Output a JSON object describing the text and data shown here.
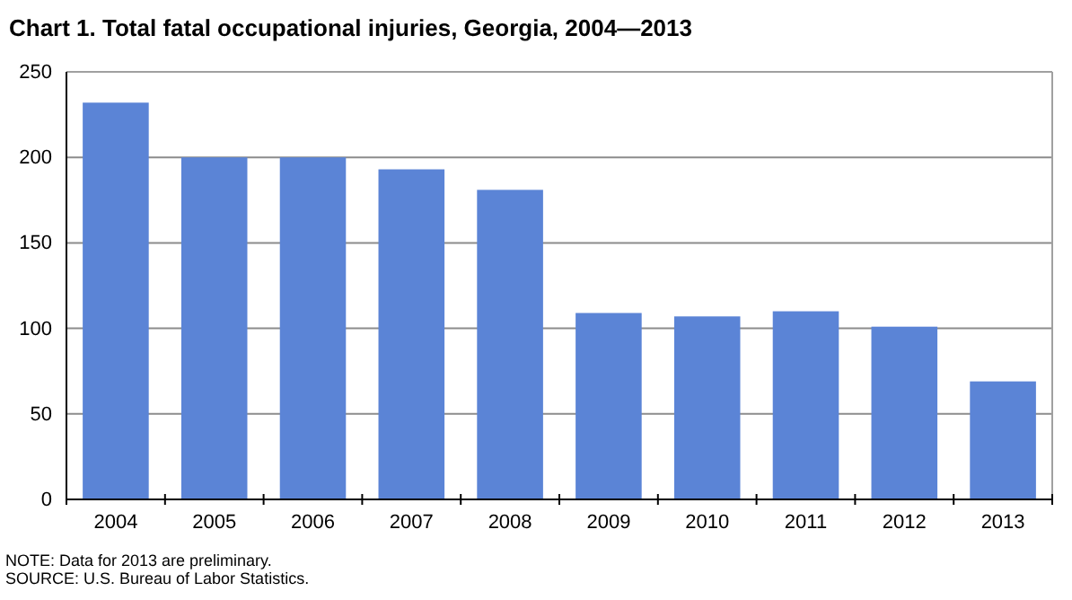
{
  "chart_data": {
    "type": "bar",
    "title": "Chart 1. Total fatal occupational injuries, Georgia, 2004—2013",
    "categories": [
      "2004",
      "2005",
      "2006",
      "2007",
      "2008",
      "2009",
      "2010",
      "2011",
      "2012",
      "2013"
    ],
    "values": [
      232,
      200,
      200,
      193,
      181,
      109,
      107,
      110,
      101,
      69
    ],
    "color": "#5b84d6",
    "ylim": [
      0,
      250
    ],
    "yticks": [
      0,
      50,
      100,
      150,
      200,
      250
    ],
    "grid": "y",
    "annotations": [
      "NOTE: Data for 2013 are preliminary.",
      "SOURCE: U.S. Bureau of Labor Statistics."
    ]
  }
}
